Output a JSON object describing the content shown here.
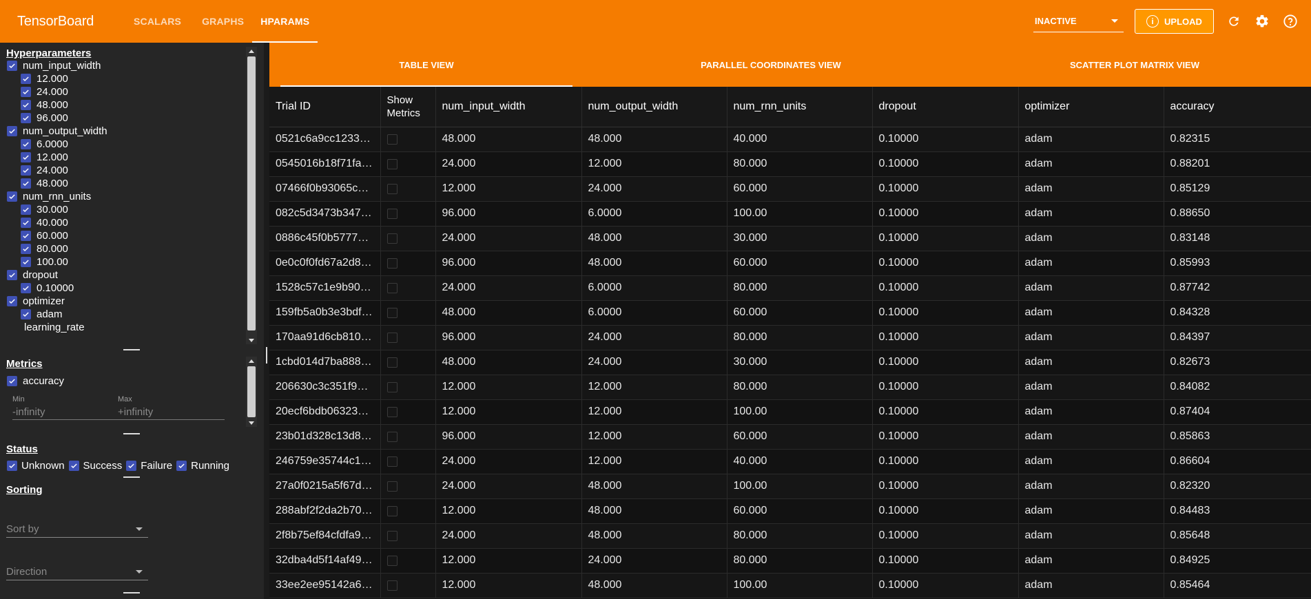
{
  "app": {
    "brand": "TensorBoard",
    "nav_tabs": [
      "SCALARS",
      "GRAPHS",
      "HPARAMS"
    ],
    "active_tab": "HPARAMS",
    "run_selector": "INACTIVE",
    "upload_label": "UPLOAD",
    "accent_color": "#f57c00",
    "checkbox_color": "#3f51b5"
  },
  "hyperparameters": {
    "title": "Hyperparameters",
    "groups": [
      {
        "name": "num_input_width",
        "values": [
          "12.000",
          "24.000",
          "48.000",
          "96.000"
        ]
      },
      {
        "name": "num_output_width",
        "values": [
          "6.0000",
          "12.000",
          "24.000",
          "48.000"
        ]
      },
      {
        "name": "num_rnn_units",
        "values": [
          "30.000",
          "40.000",
          "60.000",
          "80.000",
          "100.00"
        ]
      },
      {
        "name": "dropout",
        "values": [
          "0.10000"
        ]
      },
      {
        "name": "optimizer",
        "values": [
          "adam"
        ]
      }
    ],
    "partial_item": "learning_rate"
  },
  "metrics": {
    "title": "Metrics",
    "item": "accuracy",
    "min_label": "Min",
    "min_value": "-infinity",
    "max_label": "Max",
    "max_value": "+infinity"
  },
  "status": {
    "title": "Status",
    "items": [
      "Unknown",
      "Success",
      "Failure",
      "Running"
    ]
  },
  "sorting": {
    "title": "Sorting",
    "sort_by": "Sort by",
    "direction": "Direction"
  },
  "views": {
    "tabs": [
      "TABLE VIEW",
      "PARALLEL COORDINATES VIEW",
      "SCATTER PLOT MATRIX VIEW"
    ],
    "active": "TABLE VIEW"
  },
  "table": {
    "columns": [
      "Trial ID",
      "Show Metrics",
      "num_input_width",
      "num_output_width",
      "num_rnn_units",
      "dropout",
      "optimizer",
      "accuracy"
    ],
    "rows": [
      [
        "0521c6a9cc12333…",
        "48.000",
        "48.000",
        "40.000",
        "0.10000",
        "adam",
        "0.82315"
      ],
      [
        "0545016b18f71fa…",
        "24.000",
        "12.000",
        "80.000",
        "0.10000",
        "adam",
        "0.88201"
      ],
      [
        "07466f0b93065c7…",
        "12.000",
        "24.000",
        "60.000",
        "0.10000",
        "adam",
        "0.85129"
      ],
      [
        "082c5d3473b347…",
        "96.000",
        "6.0000",
        "100.00",
        "0.10000",
        "adam",
        "0.88650"
      ],
      [
        "0886c45f0b57777…",
        "24.000",
        "48.000",
        "30.000",
        "0.10000",
        "adam",
        "0.83148"
      ],
      [
        "0e0c0f0fd67a2d8f…",
        "96.000",
        "48.000",
        "60.000",
        "0.10000",
        "adam",
        "0.85993"
      ],
      [
        "1528c57c1e9b901…",
        "24.000",
        "6.0000",
        "80.000",
        "0.10000",
        "adam",
        "0.87742"
      ],
      [
        "159fb5a0b3e3bdf…",
        "48.000",
        "6.0000",
        "60.000",
        "0.10000",
        "adam",
        "0.84328"
      ],
      [
        "170aa91d6cb810…",
        "96.000",
        "24.000",
        "80.000",
        "0.10000",
        "adam",
        "0.84397"
      ],
      [
        "1cbd014d7ba888…",
        "48.000",
        "24.000",
        "30.000",
        "0.10000",
        "adam",
        "0.82673"
      ],
      [
        "206630c3c351f91…",
        "12.000",
        "12.000",
        "80.000",
        "0.10000",
        "adam",
        "0.84082"
      ],
      [
        "20ecf6bdb063238…",
        "12.000",
        "12.000",
        "100.00",
        "0.10000",
        "adam",
        "0.87404"
      ],
      [
        "23b01d328c13d8f…",
        "96.000",
        "12.000",
        "60.000",
        "0.10000",
        "adam",
        "0.85863"
      ],
      [
        "246759e35744c1…",
        "24.000",
        "12.000",
        "40.000",
        "0.10000",
        "adam",
        "0.86604"
      ],
      [
        "27a0f0215a5f67d…",
        "24.000",
        "48.000",
        "100.00",
        "0.10000",
        "adam",
        "0.82320"
      ],
      [
        "288abf2f2da2b70…",
        "12.000",
        "48.000",
        "60.000",
        "0.10000",
        "adam",
        "0.84483"
      ],
      [
        "2f8b75ef84cfdfa9…",
        "24.000",
        "48.000",
        "80.000",
        "0.10000",
        "adam",
        "0.85648"
      ],
      [
        "32dba4d5f14af49f…",
        "12.000",
        "24.000",
        "80.000",
        "0.10000",
        "adam",
        "0.84925"
      ],
      [
        "33ee2ee95142a65…",
        "12.000",
        "48.000",
        "100.00",
        "0.10000",
        "adam",
        "0.85464"
      ]
    ]
  }
}
